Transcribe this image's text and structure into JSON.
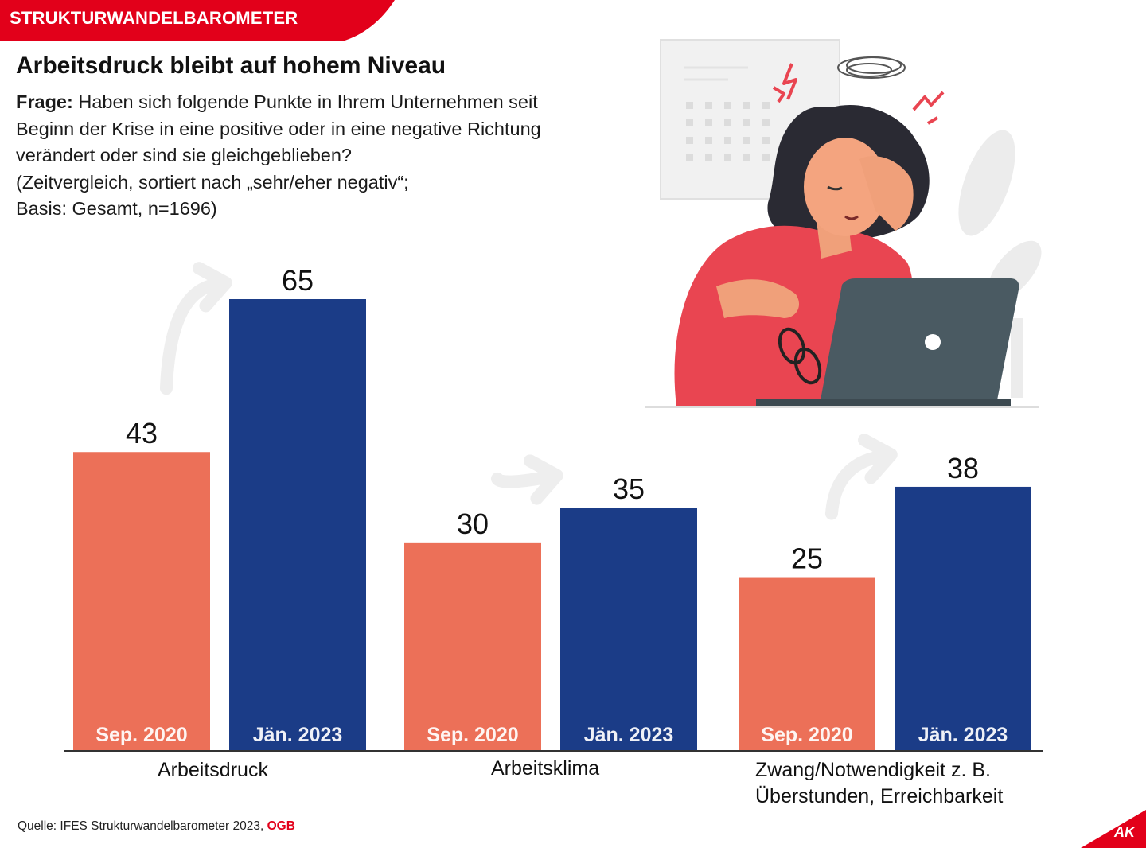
{
  "banner": {
    "text": "STRUKTURWANDELBAROMETER"
  },
  "title": "Arbeitsdruck bleibt auf hohem Niveau",
  "question": {
    "label": "Frage:",
    "line1": "Haben sich folgende Punkte in Ihrem Unternehmen seit",
    "line2": "Beginn der Krise in eine positive oder in eine negative Richtung",
    "line3": "verändert oder sind sie gleichgeblieben?",
    "line4": "(Zeitvergleich, sortiert nach „sehr/eher negativ“;",
    "line5": "Basis: Gesamt, n=1696)"
  },
  "chart_data": {
    "type": "bar",
    "categories": [
      "Arbeitsdruck",
      "Arbeitsklima",
      "Zwang/Notwendigkeit z. B. Überstunden, Erreichbarkeit"
    ],
    "category_lines": [
      [
        "Arbeitsdruck"
      ],
      [
        "Arbeitsklima"
      ],
      [
        "Zwang/Notwendigkeit z. B.",
        "Überstunden, Erreichbarkeit"
      ]
    ],
    "series": [
      {
        "name": "Sep. 2020",
        "values": [
          43,
          30,
          25
        ],
        "color": "#ec7058"
      },
      {
        "name": "Jän. 2023",
        "values": [
          65,
          35,
          38
        ],
        "color": "#1b3c87"
      }
    ],
    "ylim": [
      0,
      65
    ],
    "grid": false,
    "legend": "none",
    "data_labels": true,
    "trend_arrows": true,
    "arrow_color": "#eeeeee"
  },
  "source": {
    "text": "Quelle: IFES Strukturwandelbarometer 2023,",
    "brand": "OGB"
  },
  "logo": {
    "text": "AK"
  },
  "colors": {
    "accent": "#e2001a",
    "sep2020": "#ec7058",
    "jan2023": "#1b3c87"
  }
}
